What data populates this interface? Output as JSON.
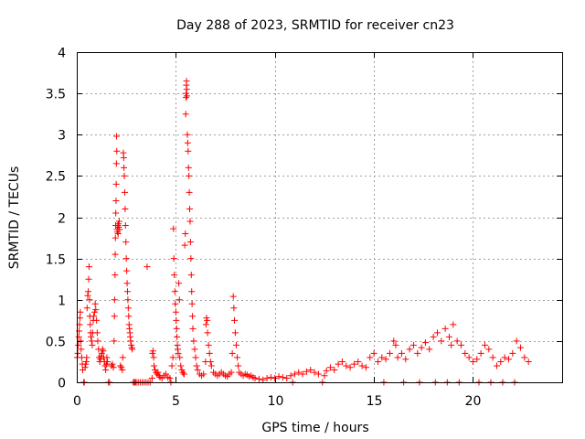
{
  "chart_data": {
    "type": "scatter",
    "title": "Day 288 of 2023, SRMTID for receiver cn23",
    "xlabel": "GPS time / hours",
    "ylabel": "SRMTID / TECUs",
    "xlim": [
      0,
      24.5
    ],
    "ylim": [
      0,
      4
    ],
    "xticks": [
      0,
      5,
      10,
      15,
      20
    ],
    "xtick_labels": [
      "0",
      "5",
      "10",
      "15",
      "20"
    ],
    "yticks": [
      0,
      0.5,
      1,
      1.5,
      2,
      2.5,
      3,
      3.5,
      4
    ],
    "ytick_labels": [
      "0",
      "0.5",
      "1",
      "1.5",
      "2",
      "2.5",
      "3",
      "3.5",
      "4"
    ],
    "grid": true,
    "marker": "plus",
    "color": "#ff0000",
    "series": [
      {
        "name": "cn23",
        "points": [
          [
            0.02,
            0.3
          ],
          [
            0.05,
            0.35
          ],
          [
            0.08,
            0.45
          ],
          [
            0.1,
            0.55
          ],
          [
            0.12,
            0.62
          ],
          [
            0.14,
            0.7
          ],
          [
            0.16,
            0.78
          ],
          [
            0.18,
            0.85
          ],
          [
            0.2,
            0.5
          ],
          [
            0.22,
            0.4
          ],
          [
            0.25,
            0.3
          ],
          [
            0.28,
            0.22
          ],
          [
            0.3,
            0.15
          ],
          [
            0.35,
            0.0
          ],
          [
            0.38,
            0.0
          ],
          [
            0.42,
            0.18
          ],
          [
            0.45,
            0.22
          ],
          [
            0.48,
            0.25
          ],
          [
            0.5,
            0.3
          ],
          [
            0.52,
            0.9
          ],
          [
            0.55,
            1.05
          ],
          [
            0.58,
            1.1
          ],
          [
            0.6,
            1.25
          ],
          [
            0.62,
            1.4
          ],
          [
            0.64,
            1.0
          ],
          [
            0.66,
            0.8
          ],
          [
            0.68,
            0.7
          ],
          [
            0.7,
            0.6
          ],
          [
            0.72,
            0.55
          ],
          [
            0.75,
            0.5
          ],
          [
            0.78,
            0.45
          ],
          [
            0.8,
            0.6
          ],
          [
            0.83,
            0.75
          ],
          [
            0.86,
            0.8
          ],
          [
            0.9,
            0.85
          ],
          [
            0.93,
            0.95
          ],
          [
            0.96,
            0.88
          ],
          [
            1.0,
            0.75
          ],
          [
            1.03,
            0.6
          ],
          [
            1.06,
            0.5
          ],
          [
            1.1,
            0.4
          ],
          [
            1.13,
            0.3
          ],
          [
            1.16,
            0.25
          ],
          [
            1.2,
            0.28
          ],
          [
            1.23,
            0.32
          ],
          [
            1.26,
            0.35
          ],
          [
            1.3,
            0.4
          ],
          [
            1.33,
            0.38
          ],
          [
            1.36,
            0.3
          ],
          [
            1.4,
            0.25
          ],
          [
            1.43,
            0.2
          ],
          [
            1.46,
            0.15
          ],
          [
            1.5,
            0.22
          ],
          [
            1.52,
            0.3
          ],
          [
            1.55,
            0.25
          ],
          [
            1.6,
            0.0
          ],
          [
            1.65,
            0.0
          ],
          [
            1.75,
            0.2
          ],
          [
            1.8,
            0.22
          ],
          [
            1.85,
            0.18
          ],
          [
            1.88,
            0.5
          ],
          [
            1.9,
            0.8
          ],
          [
            1.91,
            1.0
          ],
          [
            1.93,
            1.3
          ],
          [
            1.94,
            1.55
          ],
          [
            1.95,
            1.75
          ],
          [
            1.96,
            1.9
          ],
          [
            1.97,
            2.05
          ],
          [
            1.98,
            2.2
          ],
          [
            1.99,
            2.4
          ],
          [
            2.0,
            2.65
          ],
          [
            2.01,
            2.98
          ],
          [
            2.02,
            2.8
          ],
          [
            2.03,
            1.85
          ],
          [
            2.05,
            1.82
          ],
          [
            2.07,
            1.9
          ],
          [
            2.09,
            1.8
          ],
          [
            2.1,
            1.92
          ],
          [
            2.12,
            1.88
          ],
          [
            2.14,
            1.95
          ],
          [
            2.16,
            1.85
          ],
          [
            2.2,
            0.2
          ],
          [
            2.25,
            0.18
          ],
          [
            2.3,
            0.15
          ],
          [
            2.32,
            0.3
          ],
          [
            2.35,
            2.78
          ],
          [
            2.37,
            2.72
          ],
          [
            2.38,
            2.6
          ],
          [
            2.4,
            2.5
          ],
          [
            2.42,
            2.3
          ],
          [
            2.44,
            2.1
          ],
          [
            2.46,
            1.9
          ],
          [
            2.48,
            1.7
          ],
          [
            2.5,
            1.5
          ],
          [
            2.52,
            1.35
          ],
          [
            2.54,
            1.2
          ],
          [
            2.56,
            1.1
          ],
          [
            2.58,
            1.0
          ],
          [
            2.6,
            0.9
          ],
          [
            2.62,
            0.8
          ],
          [
            2.64,
            0.7
          ],
          [
            2.66,
            0.65
          ],
          [
            2.68,
            0.6
          ],
          [
            2.7,
            0.55
          ],
          [
            2.72,
            0.5
          ],
          [
            2.75,
            0.45
          ],
          [
            2.78,
            0.42
          ],
          [
            2.8,
            0.4
          ],
          [
            2.85,
            0.0
          ],
          [
            2.9,
            0.0
          ],
          [
            2.95,
            0.0
          ],
          [
            3.0,
            0.0
          ],
          [
            3.1,
            0.0
          ],
          [
            3.2,
            0.0
          ],
          [
            3.3,
            0.0
          ],
          [
            3.4,
            0.0
          ],
          [
            3.5,
            0.0
          ],
          [
            3.55,
            1.4
          ],
          [
            3.6,
            0.0
          ],
          [
            3.7,
            0.0
          ],
          [
            3.8,
            0.05
          ],
          [
            3.82,
            0.35
          ],
          [
            3.85,
            0.38
          ],
          [
            3.88,
            0.3
          ],
          [
            3.9,
            0.2
          ],
          [
            3.95,
            0.15
          ],
          [
            4.0,
            0.12
          ],
          [
            4.05,
            0.1
          ],
          [
            4.1,
            0.12
          ],
          [
            4.15,
            0.08
          ],
          [
            4.2,
            0.06
          ],
          [
            4.3,
            0.05
          ],
          [
            4.4,
            0.08
          ],
          [
            4.5,
            0.1
          ],
          [
            4.6,
            0.06
          ],
          [
            4.7,
            0.05
          ],
          [
            4.75,
            0.0
          ],
          [
            4.8,
            0.2
          ],
          [
            4.85,
            0.3
          ],
          [
            4.88,
            1.86
          ],
          [
            4.9,
            1.5
          ],
          [
            4.92,
            1.3
          ],
          [
            4.95,
            1.1
          ],
          [
            4.97,
            0.95
          ],
          [
            5.0,
            0.85
          ],
          [
            5.02,
            0.75
          ],
          [
            5.04,
            0.65
          ],
          [
            5.06,
            0.55
          ],
          [
            5.08,
            0.45
          ],
          [
            5.1,
            0.4
          ],
          [
            5.12,
            0.35
          ],
          [
            5.15,
            1.2
          ],
          [
            5.18,
            1.0
          ],
          [
            5.2,
            0.3
          ],
          [
            5.25,
            0.2
          ],
          [
            5.3,
            0.15
          ],
          [
            5.35,
            0.12
          ],
          [
            5.4,
            0.1
          ],
          [
            5.42,
            0.1
          ],
          [
            5.45,
            1.66
          ],
          [
            5.48,
            1.8
          ],
          [
            5.5,
            3.25
          ],
          [
            5.51,
            3.45
          ],
          [
            5.52,
            3.5
          ],
          [
            5.53,
            3.6
          ],
          [
            5.54,
            3.65
          ],
          [
            5.55,
            3.55
          ],
          [
            5.56,
            3.47
          ],
          [
            5.58,
            3.0
          ],
          [
            5.6,
            2.9
          ],
          [
            5.62,
            2.8
          ],
          [
            5.64,
            2.6
          ],
          [
            5.66,
            2.5
          ],
          [
            5.68,
            2.3
          ],
          [
            5.7,
            2.1
          ],
          [
            5.72,
            1.95
          ],
          [
            5.74,
            1.7
          ],
          [
            5.76,
            1.5
          ],
          [
            5.78,
            1.3
          ],
          [
            5.8,
            1.1
          ],
          [
            5.82,
            0.95
          ],
          [
            5.84,
            0.8
          ],
          [
            5.86,
            0.65
          ],
          [
            5.9,
            0.5
          ],
          [
            5.95,
            0.4
          ],
          [
            6.0,
            0.3
          ],
          [
            6.05,
            0.2
          ],
          [
            6.1,
            0.15
          ],
          [
            6.2,
            0.1
          ],
          [
            6.3,
            0.08
          ],
          [
            6.4,
            0.1
          ],
          [
            6.5,
            0.25
          ],
          [
            6.52,
            0.7
          ],
          [
            6.55,
            0.78
          ],
          [
            6.58,
            0.75
          ],
          [
            6.6,
            0.6
          ],
          [
            6.65,
            0.45
          ],
          [
            6.7,
            0.35
          ],
          [
            6.75,
            0.25
          ],
          [
            6.8,
            0.2
          ],
          [
            6.9,
            0.12
          ],
          [
            7.0,
            0.1
          ],
          [
            7.1,
            0.08
          ],
          [
            7.2,
            0.1
          ],
          [
            7.3,
            0.12
          ],
          [
            7.4,
            0.1
          ],
          [
            7.5,
            0.08
          ],
          [
            7.6,
            0.07
          ],
          [
            7.7,
            0.1
          ],
          [
            7.8,
            0.12
          ],
          [
            7.85,
            0.35
          ],
          [
            7.9,
            1.04
          ],
          [
            7.93,
            0.9
          ],
          [
            7.96,
            0.75
          ],
          [
            8.0,
            0.6
          ],
          [
            8.05,
            0.45
          ],
          [
            8.1,
            0.3
          ],
          [
            8.15,
            0.2
          ],
          [
            8.2,
            0.12
          ],
          [
            8.3,
            0.1
          ],
          [
            8.4,
            0.08
          ],
          [
            8.5,
            0.1
          ],
          [
            8.6,
            0.09
          ],
          [
            8.7,
            0.07
          ],
          [
            8.8,
            0.08
          ],
          [
            8.9,
            0.06
          ],
          [
            9.0,
            0.05
          ],
          [
            9.2,
            0.04
          ],
          [
            9.4,
            0.03
          ],
          [
            9.6,
            0.05
          ],
          [
            9.8,
            0.06
          ],
          [
            10.0,
            0.05
          ],
          [
            10.2,
            0.07
          ],
          [
            10.4,
            0.06
          ],
          [
            10.6,
            0.05
          ],
          [
            10.8,
            0.08
          ],
          [
            10.9,
            0.0
          ],
          [
            11.0,
            0.1
          ],
          [
            11.2,
            0.12
          ],
          [
            11.4,
            0.1
          ],
          [
            11.6,
            0.13
          ],
          [
            11.8,
            0.15
          ],
          [
            12.0,
            0.12
          ],
          [
            12.2,
            0.1
          ],
          [
            12.4,
            0.0
          ],
          [
            12.5,
            0.08
          ],
          [
            12.6,
            0.14
          ],
          [
            12.8,
            0.18
          ],
          [
            13.0,
            0.15
          ],
          [
            13.2,
            0.22
          ],
          [
            13.4,
            0.25
          ],
          [
            13.6,
            0.2
          ],
          [
            13.8,
            0.18
          ],
          [
            14.0,
            0.22
          ],
          [
            14.2,
            0.25
          ],
          [
            14.4,
            0.2
          ],
          [
            14.6,
            0.18
          ],
          [
            14.8,
            0.3
          ],
          [
            15.0,
            0.35
          ],
          [
            15.2,
            0.25
          ],
          [
            15.4,
            0.3
          ],
          [
            15.6,
            0.28
          ],
          [
            15.8,
            0.35
          ],
          [
            16.0,
            0.5
          ],
          [
            16.1,
            0.45
          ],
          [
            16.2,
            0.3
          ],
          [
            16.4,
            0.35
          ],
          [
            16.6,
            0.28
          ],
          [
            16.8,
            0.4
          ],
          [
            17.0,
            0.45
          ],
          [
            17.2,
            0.35
          ],
          [
            17.4,
            0.42
          ],
          [
            17.6,
            0.48
          ],
          [
            17.8,
            0.4
          ],
          [
            18.0,
            0.55
          ],
          [
            18.2,
            0.6
          ],
          [
            18.4,
            0.5
          ],
          [
            18.6,
            0.65
          ],
          [
            18.8,
            0.55
          ],
          [
            18.9,
            0.45
          ],
          [
            19.0,
            0.7
          ],
          [
            19.2,
            0.5
          ],
          [
            19.4,
            0.45
          ],
          [
            19.6,
            0.35
          ],
          [
            19.8,
            0.3
          ],
          [
            20.0,
            0.25
          ],
          [
            20.2,
            0.28
          ],
          [
            20.4,
            0.35
          ],
          [
            20.6,
            0.45
          ],
          [
            20.8,
            0.4
          ],
          [
            21.0,
            0.3
          ],
          [
            21.2,
            0.2
          ],
          [
            21.4,
            0.25
          ],
          [
            21.6,
            0.3
          ],
          [
            21.8,
            0.28
          ],
          [
            22.0,
            0.35
          ],
          [
            22.2,
            0.5
          ],
          [
            22.4,
            0.42
          ],
          [
            22.6,
            0.3
          ],
          [
            22.8,
            0.25
          ],
          [
            15.5,
            0.0
          ],
          [
            16.5,
            0.0
          ],
          [
            17.3,
            0.0
          ],
          [
            18.1,
            0.0
          ],
          [
            18.7,
            0.0
          ],
          [
            19.3,
            0.0
          ],
          [
            20.3,
            0.0
          ],
          [
            20.9,
            0.0
          ],
          [
            21.5,
            0.0
          ],
          [
            22.1,
            0.0
          ]
        ]
      }
    ]
  }
}
